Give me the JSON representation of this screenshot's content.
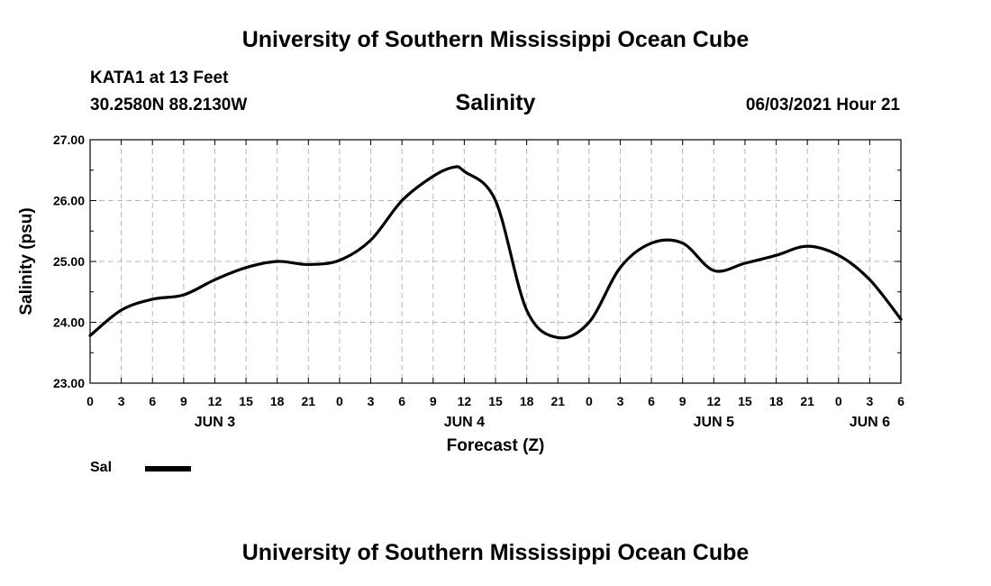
{
  "header": {
    "title": "University of Southern Mississippi Ocean Cube",
    "station": "KATA1 at 13 Feet",
    "coordinates": "30.2580N  88.2130W",
    "chart_title": "Salinity",
    "datetime": "06/03/2021 Hour 21"
  },
  "footer": {
    "title": "University of Southern Mississippi Ocean Cube"
  },
  "legend": {
    "label": "Sal",
    "color": "#000000"
  },
  "chart_data": {
    "type": "line",
    "title": "Salinity",
    "xlabel": "Forecast (Z)",
    "ylabel": "Salinity (psu)",
    "ylim": [
      23.0,
      27.0
    ],
    "yticks": [
      "23.00",
      "24.00",
      "25.00",
      "26.00",
      "27.00"
    ],
    "xlim": [
      0,
      78
    ],
    "xtick_step_hours": 3,
    "xtick_labels": [
      "0",
      "3",
      "6",
      "9",
      "12",
      "15",
      "18",
      "21",
      "0",
      "3",
      "6",
      "9",
      "12",
      "15",
      "18",
      "21",
      "0",
      "3",
      "6",
      "9",
      "12",
      "15",
      "18",
      "21",
      "0",
      "3",
      "6"
    ],
    "day_labels": [
      {
        "label": "JUN 3",
        "hour": 12
      },
      {
        "label": "JUN 4",
        "hour": 36
      },
      {
        "label": "JUN 5",
        "hour": 60
      },
      {
        "label": "JUN 6",
        "hour": 75
      }
    ],
    "grid": true,
    "series": [
      {
        "name": "Sal",
        "color": "#000000",
        "x": [
          0,
          3,
          6,
          9,
          12,
          15,
          18,
          21,
          24,
          27,
          30,
          33,
          35,
          36,
          39,
          42,
          45,
          48,
          51,
          54,
          57,
          60,
          63,
          66,
          69,
          72,
          75,
          78
        ],
        "y": [
          23.78,
          24.2,
          24.38,
          24.45,
          24.7,
          24.9,
          25.0,
          24.95,
          25.02,
          25.35,
          26.0,
          26.4,
          26.55,
          26.48,
          26.0,
          24.2,
          23.75,
          24.0,
          24.9,
          25.3,
          25.3,
          24.85,
          24.97,
          25.1,
          25.25,
          25.1,
          24.7,
          24.05
        ]
      }
    ]
  }
}
